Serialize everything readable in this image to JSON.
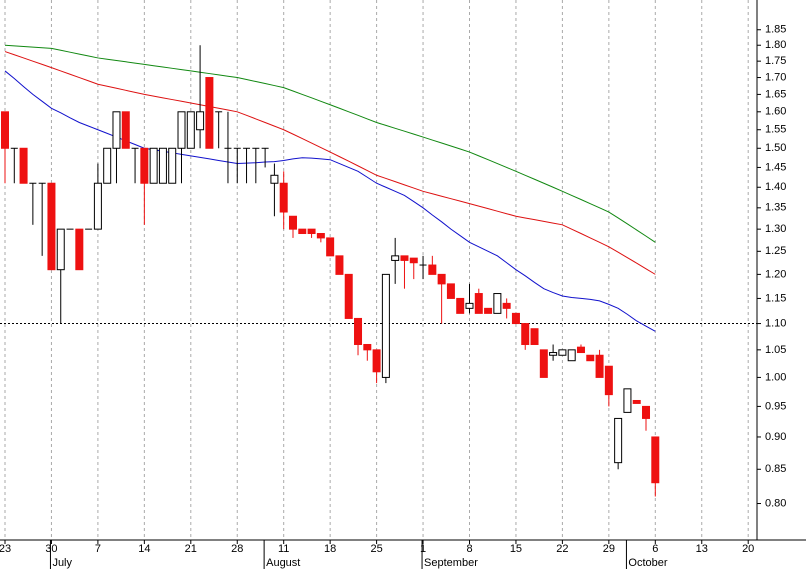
{
  "chart_data": {
    "type": "candlestick",
    "log_y": true,
    "ylim": [
      0.75,
      1.95
    ],
    "yticks": [
      {
        "value": 0.8,
        "label": "0.80"
      },
      0.85,
      {
        "value": 0.9,
        "label": "0.90"
      },
      0.95,
      {
        "value": 1.0,
        "label": "1.00"
      },
      1.05,
      {
        "value": 1.1,
        "label": "1.10"
      },
      1.15,
      {
        "value": 1.2,
        "label": "1.20"
      },
      1.25,
      {
        "value": 1.3,
        "label": "1.30"
      },
      1.35,
      {
        "value": 1.4,
        "label": "1.40"
      },
      1.45,
      {
        "value": 1.5,
        "label": "1.50"
      },
      1.55,
      {
        "value": 1.6,
        "label": "1.60"
      },
      1.65,
      {
        "value": 1.7,
        "label": "1.70"
      },
      1.75,
      {
        "value": 1.8,
        "label": "1.80"
      },
      1.85
    ],
    "reference_line": 1.1,
    "grid": true,
    "up_color": "#ffffff",
    "down_color": "#ee1111",
    "categories": [
      "23",
      null,
      null,
      null,
      null,
      "30",
      null,
      null,
      null,
      null,
      "7",
      null,
      null,
      null,
      null,
      "14",
      null,
      null,
      null,
      null,
      "21",
      null,
      null,
      null,
      null,
      "28",
      null,
      null,
      null,
      null,
      "11",
      null,
      null,
      null,
      null,
      "18",
      null,
      null,
      null,
      null,
      "25",
      null,
      null,
      null,
      null,
      "1",
      null,
      null,
      null,
      null,
      "8",
      null,
      null,
      null,
      null,
      "15",
      null,
      null,
      null,
      null,
      "22",
      null,
      null,
      null,
      null,
      "29",
      null,
      null,
      null,
      null,
      "6",
      null,
      null,
      null,
      null,
      "13",
      null,
      null,
      null,
      null,
      "20"
    ],
    "months": [
      null,
      null,
      null,
      null,
      null,
      "July",
      null,
      null,
      null,
      null,
      null,
      null,
      null,
      null,
      null,
      null,
      null,
      null,
      null,
      null,
      null,
      null,
      null,
      null,
      null,
      null,
      null,
      null,
      "August",
      null,
      null,
      null,
      null,
      null,
      null,
      null,
      null,
      null,
      null,
      null,
      null,
      null,
      null,
      null,
      null,
      "September",
      null,
      null,
      null,
      null,
      null,
      null,
      null,
      null,
      null,
      null,
      null,
      null,
      null,
      null,
      null,
      null,
      null,
      null,
      null,
      null,
      null,
      "October",
      null,
      null,
      null,
      null,
      null,
      null,
      null,
      null,
      null,
      null,
      null,
      null,
      null
    ],
    "open": [
      1.6,
      1.5,
      1.5,
      1.41,
      1.41,
      1.41,
      1.21,
      1.3,
      1.3,
      1.3,
      1.3,
      1.41,
      1.5,
      1.6,
      1.5,
      1.5,
      1.41,
      1.41,
      1.41,
      1.5,
      1.5,
      1.55,
      1.7,
      1.6,
      1.5,
      1.5,
      1.5,
      1.5,
      1.5,
      1.41,
      1.41,
      1.33,
      1.3,
      1.3,
      1.29,
      1.28,
      1.24,
      1.2,
      1.11,
      1.06,
      1.05,
      1.0,
      1.23,
      1.24,
      1.235,
      1.22,
      1.22,
      1.2,
      1.18,
      1.15,
      1.13,
      1.16,
      1.13,
      1.12,
      1.14,
      1.12,
      1.1,
      1.09,
      1.05,
      1.04,
      1.04,
      1.03,
      1.055,
      1.04,
      1.04,
      1.02,
      0.86,
      0.94,
      0.96,
      0.95,
      0.9,
      null,
      null,
      null,
      null,
      null,
      null,
      null,
      null,
      null,
      null
    ],
    "high": [
      1.6,
      1.5,
      1.5,
      1.41,
      1.41,
      1.41,
      1.3,
      1.3,
      1.3,
      1.3,
      1.46,
      1.5,
      1.6,
      1.6,
      1.5,
      1.5,
      1.5,
      1.5,
      1.5,
      1.6,
      1.6,
      1.8,
      1.7,
      1.6,
      1.6,
      1.5,
      1.5,
      1.5,
      1.5,
      1.46,
      1.44,
      1.33,
      1.3,
      1.3,
      1.29,
      1.28,
      1.24,
      1.2,
      1.11,
      1.06,
      1.05,
      1.2,
      1.28,
      1.24,
      1.235,
      1.24,
      1.24,
      1.2,
      1.18,
      1.15,
      1.18,
      1.17,
      1.13,
      1.16,
      1.15,
      1.12,
      1.1,
      1.09,
      1.05,
      1.06,
      1.05,
      1.05,
      1.06,
      1.04,
      1.05,
      1.02,
      0.93,
      0.98,
      0.96,
      0.95,
      0.9,
      null,
      null,
      null,
      null,
      null,
      null,
      null,
      null,
      null,
      null
    ],
    "low": [
      1.41,
      1.41,
      1.41,
      1.31,
      1.24,
      1.21,
      1.1,
      1.3,
      1.21,
      1.3,
      1.3,
      1.41,
      1.41,
      1.5,
      1.41,
      1.31,
      1.41,
      1.41,
      1.41,
      1.41,
      1.5,
      1.5,
      1.5,
      1.5,
      1.41,
      1.41,
      1.41,
      1.41,
      1.45,
      1.33,
      1.3,
      1.28,
      1.29,
      1.28,
      1.27,
      1.24,
      1.2,
      1.11,
      1.04,
      1.03,
      0.99,
      0.99,
      1.18,
      1.17,
      1.19,
      1.19,
      1.2,
      1.1,
      1.15,
      1.12,
      1.12,
      1.12,
      1.12,
      1.12,
      1.11,
      1.1,
      1.05,
      1.06,
      1.0,
      1.03,
      1.04,
      1.03,
      1.045,
      1.03,
      1.0,
      0.95,
      0.85,
      0.94,
      0.955,
      0.91,
      0.81,
      null,
      null,
      null,
      null,
      null,
      null,
      null,
      null,
      null,
      null
    ],
    "close": [
      1.5,
      1.5,
      1.41,
      1.41,
      1.41,
      1.21,
      1.3,
      1.3,
      1.21,
      1.3,
      1.41,
      1.5,
      1.6,
      1.5,
      1.5,
      1.41,
      1.5,
      1.5,
      1.5,
      1.6,
      1.6,
      1.6,
      1.5,
      1.6,
      1.5,
      1.5,
      1.5,
      1.5,
      1.5,
      1.43,
      1.34,
      1.3,
      1.29,
      1.29,
      1.28,
      1.24,
      1.2,
      1.11,
      1.06,
      1.05,
      1.01,
      1.2,
      1.24,
      1.23,
      1.225,
      1.22,
      1.2,
      1.18,
      1.15,
      1.12,
      1.14,
      1.12,
      1.12,
      1.16,
      1.13,
      1.1,
      1.06,
      1.06,
      1.0,
      1.045,
      1.05,
      1.05,
      1.045,
      1.03,
      1.0,
      0.97,
      0.93,
      0.98,
      0.955,
      0.93,
      0.83,
      null,
      null,
      null,
      null,
      null,
      null,
      null,
      null,
      null,
      null
    ],
    "series": [
      {
        "color": "#118811",
        "values": [
          1.8,
          1.798,
          1.796,
          1.794,
          1.792,
          1.79,
          1.784,
          1.778,
          1.772,
          1.766,
          1.76,
          1.756,
          1.752,
          1.748,
          1.744,
          1.74,
          1.736,
          1.732,
          1.728,
          1.724,
          1.72,
          1.716,
          1.712,
          1.708,
          1.704,
          1.7,
          1.694,
          1.688,
          1.682,
          1.676,
          1.67,
          1.66,
          1.65,
          1.64,
          1.63,
          1.62,
          1.61,
          1.6,
          1.59,
          1.58,
          1.57,
          1.562,
          1.554,
          1.546,
          1.538,
          1.53,
          1.522,
          1.514,
          1.506,
          1.498,
          1.49,
          1.48,
          1.47,
          1.46,
          1.45,
          1.44,
          1.43,
          1.42,
          1.41,
          1.4,
          1.39,
          1.38,
          1.37,
          1.36,
          1.35,
          1.34,
          1.326,
          1.312,
          1.298,
          1.284,
          1.27,
          null,
          null,
          null,
          null,
          null,
          null,
          null,
          null,
          null,
          null
        ]
      },
      {
        "color": "#dd1111",
        "values": [
          1.78,
          1.77,
          1.76,
          1.75,
          1.74,
          1.73,
          1.72,
          1.71,
          1.7,
          1.69,
          1.68,
          1.674,
          1.668,
          1.662,
          1.656,
          1.65,
          1.645,
          1.64,
          1.635,
          1.63,
          1.625,
          1.62,
          1.615,
          1.61,
          1.605,
          1.6,
          1.59,
          1.58,
          1.57,
          1.56,
          1.55,
          1.538,
          1.526,
          1.514,
          1.502,
          1.49,
          1.478,
          1.466,
          1.454,
          1.442,
          1.43,
          1.422,
          1.414,
          1.406,
          1.398,
          1.39,
          1.384,
          1.378,
          1.372,
          1.366,
          1.36,
          1.354,
          1.348,
          1.342,
          1.336,
          1.33,
          1.326,
          1.322,
          1.318,
          1.314,
          1.31,
          1.3,
          1.29,
          1.28,
          1.27,
          1.26,
          1.248,
          1.236,
          1.224,
          1.212,
          1.2,
          null,
          null,
          null,
          null,
          null,
          null,
          null,
          null,
          null,
          null
        ]
      },
      {
        "color": "#1111cc",
        "values": [
          1.72,
          1.697,
          1.673,
          1.65,
          1.63,
          1.61,
          1.597,
          1.583,
          1.57,
          1.56,
          1.55,
          1.54,
          1.53,
          1.52,
          1.51,
          1.5,
          1.496,
          1.492,
          1.488,
          1.484,
          1.48,
          1.476,
          1.472,
          1.468,
          1.464,
          1.46,
          1.461,
          1.462,
          1.464,
          1.465,
          1.468,
          1.472,
          1.475,
          1.474,
          1.472,
          1.47,
          1.46,
          1.45,
          1.44,
          1.425,
          1.41,
          1.4,
          1.39,
          1.38,
          1.365,
          1.35,
          1.333,
          1.317,
          1.3,
          1.285,
          1.27,
          1.26,
          1.25,
          1.24,
          1.225,
          1.21,
          1.197,
          1.183,
          1.17,
          1.162,
          1.155,
          1.152,
          1.15,
          1.148,
          1.145,
          1.138,
          1.13,
          1.118,
          1.105,
          1.095,
          1.085,
          null,
          null,
          null,
          null,
          null,
          null,
          null,
          null,
          null,
          null
        ]
      }
    ]
  }
}
